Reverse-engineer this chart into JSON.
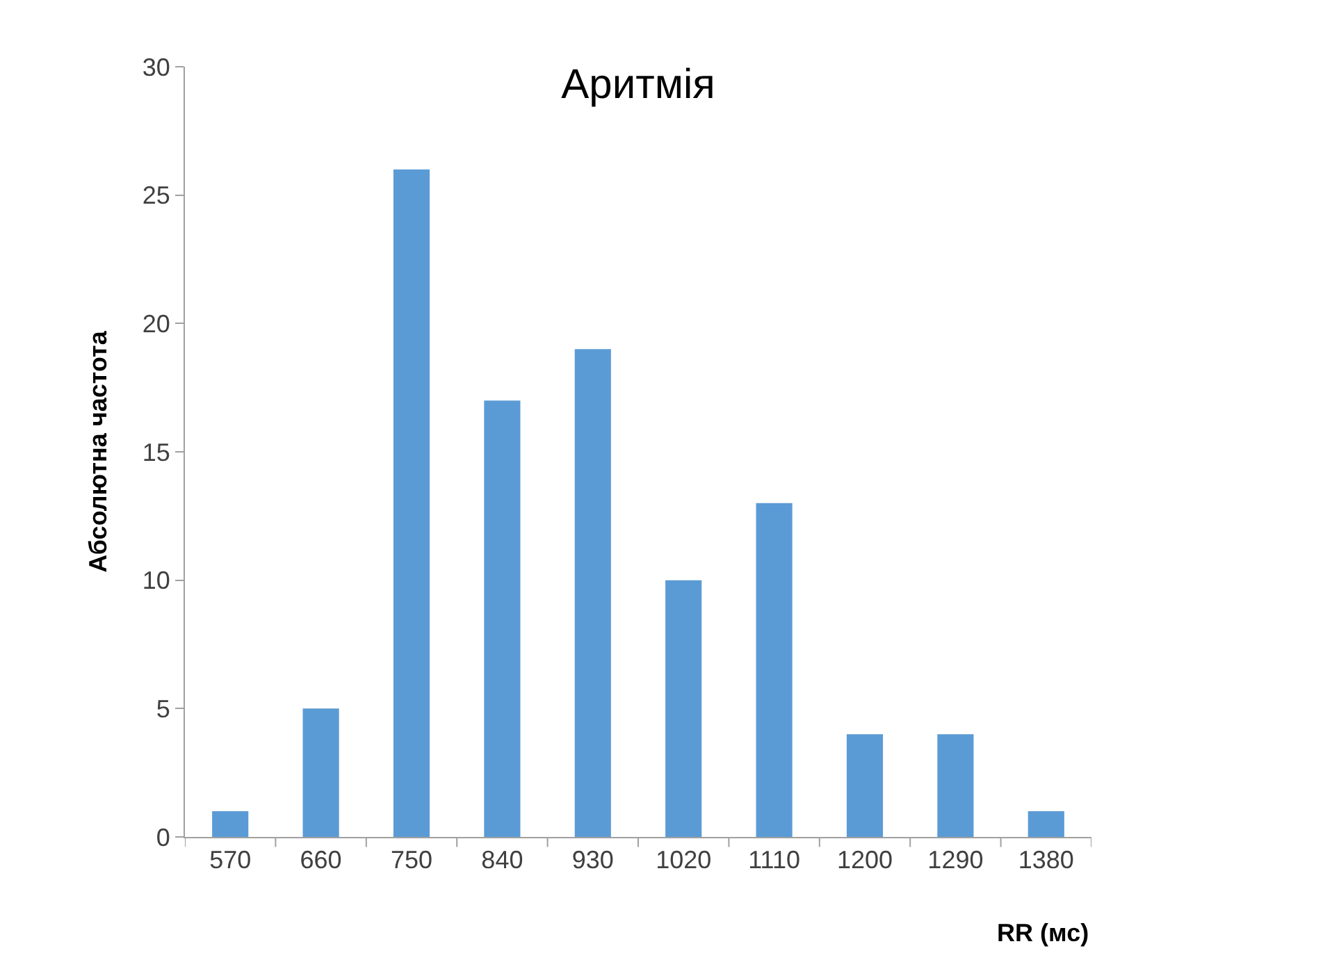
{
  "chart_data": {
    "type": "bar",
    "title": "Аритмія",
    "xlabel": "RR (мс)",
    "ylabel": "Абсолютна частота",
    "categories": [
      "570",
      "660",
      "750",
      "840",
      "930",
      "1020",
      "1110",
      "1200",
      "1290",
      "1380"
    ],
    "values": [
      1,
      5,
      26,
      17,
      19,
      10,
      13,
      4,
      4,
      1
    ],
    "color": "#5b9bd5",
    "ylim": [
      0,
      30
    ],
    "yticks": [
      0,
      5,
      10,
      15,
      20,
      25,
      30
    ]
  }
}
